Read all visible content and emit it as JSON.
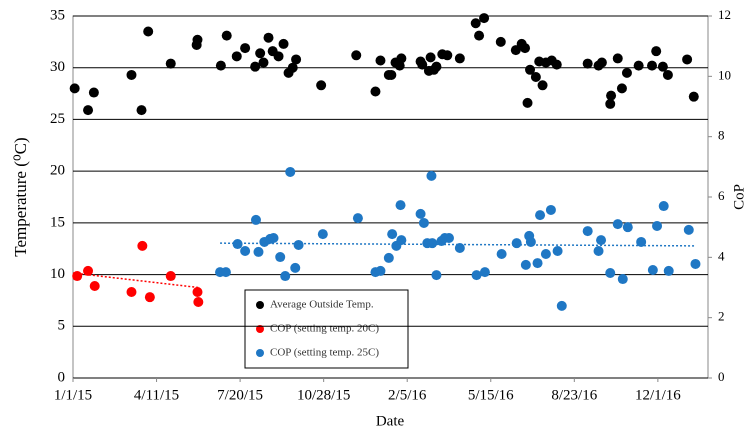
{
  "chart_data": {
    "type": "scatter",
    "xlabel": "Date",
    "ylabel": "Temperature (⁰C)",
    "y2label": "CoP",
    "xlim": [
      0,
      760
    ],
    "xticks": [
      {
        "value": 0,
        "label": "1/1/15"
      },
      {
        "value": 100,
        "label": "4/11/15"
      },
      {
        "value": 200,
        "label": "7/20/15"
      },
      {
        "value": 300,
        "label": "10/28/15"
      },
      {
        "value": 400,
        "label": "2/5/16"
      },
      {
        "value": 500,
        "label": "5/15/16"
      },
      {
        "value": 600,
        "label": "8/23/16"
      },
      {
        "value": 700,
        "label": "12/1/16"
      }
    ],
    "ylim": [
      0,
      35
    ],
    "yticks": [
      0,
      5,
      10,
      15,
      20,
      25,
      30,
      35
    ],
    "y2lim": [
      0,
      12
    ],
    "y2ticks": [
      0,
      2,
      4,
      6,
      8,
      10,
      12
    ],
    "grid": true,
    "series": [
      {
        "name": "Average Outside Temp.",
        "color": "#000000",
        "axis": "y",
        "x": [
          2,
          18,
          25,
          70,
          82,
          90,
          117,
          148,
          149,
          177,
          184,
          196,
          206,
          218,
          224,
          228,
          234,
          239,
          246,
          252,
          258,
          263,
          267,
          297,
          339,
          362,
          368,
          378,
          381,
          386,
          391,
          393,
          416,
          418,
          426,
          428,
          432,
          435,
          442,
          448,
          463,
          482,
          486,
          492,
          512,
          530,
          537,
          541,
          544,
          547,
          554,
          558,
          562,
          566,
          573,
          579,
          616,
          629,
          633,
          643,
          644,
          652,
          657,
          663,
          677,
          693,
          698,
          706,
          712,
          735,
          743
        ],
        "values": [
          28.0,
          25.9,
          27.6,
          29.3,
          25.9,
          33.5,
          30.4,
          32.2,
          32.7,
          30.2,
          33.1,
          31.1,
          31.9,
          30.1,
          31.4,
          30.5,
          32.9,
          31.6,
          31.1,
          32.3,
          29.5,
          30.0,
          30.8,
          28.3,
          31.2,
          27.7,
          30.7,
          29.3,
          29.3,
          30.5,
          30.2,
          30.9,
          30.6,
          30.3,
          29.7,
          31.0,
          29.8,
          30.1,
          31.3,
          31.2,
          30.9,
          34.3,
          33.1,
          34.8,
          32.5,
          31.7,
          32.3,
          31.9,
          26.6,
          29.8,
          29.1,
          30.6,
          28.3,
          30.5,
          30.7,
          30.3,
          30.4,
          30.2,
          30.5,
          26.5,
          27.3,
          30.9,
          28.0,
          29.5,
          30.2,
          30.2,
          31.6,
          30.1,
          29.3,
          30.8,
          27.2
        ]
      },
      {
        "name": "COP (setting temp. 20C)",
        "color": "#ff0000",
        "axis": "y2",
        "x": [
          5,
          18,
          26,
          70,
          83,
          92,
          117,
          149,
          150
        ],
        "values": [
          3.38,
          3.55,
          3.05,
          2.85,
          4.38,
          2.68,
          3.38,
          2.85,
          2.52
        ],
        "trend": {
          "x": [
            0,
            150
          ],
          "values": [
            3.48,
            3.0
          ]
        }
      },
      {
        "name": "COP (setting temp. 25C)",
        "color": "#1f77c4",
        "axis": "y2",
        "x": [
          176,
          183,
          197,
          206,
          219,
          222,
          229,
          236,
          240,
          248,
          254,
          260,
          266,
          270,
          299,
          341,
          362,
          368,
          378,
          382,
          387,
          392,
          393,
          416,
          420,
          424,
          429,
          430,
          435,
          441,
          445,
          450,
          463,
          483,
          493,
          513,
          531,
          542,
          546,
          548,
          556,
          559,
          566,
          572,
          580,
          585,
          616,
          629,
          632,
          643,
          652,
          658,
          664,
          680,
          694,
          699,
          707,
          713,
          737,
          745
        ],
        "values": [
          3.51,
          3.51,
          4.44,
          4.21,
          5.24,
          4.18,
          4.51,
          4.61,
          4.64,
          4.01,
          3.38,
          6.83,
          3.65,
          4.41,
          4.77,
          5.3,
          3.51,
          3.55,
          3.98,
          4.77,
          4.38,
          5.73,
          4.57,
          5.44,
          5.14,
          4.47,
          6.7,
          4.47,
          3.41,
          4.54,
          4.64,
          4.64,
          4.31,
          3.41,
          3.51,
          4.11,
          4.47,
          3.75,
          4.71,
          4.51,
          3.81,
          5.4,
          4.11,
          5.57,
          4.21,
          2.39,
          4.87,
          4.21,
          4.57,
          3.48,
          5.1,
          3.28,
          5.0,
          4.51,
          3.58,
          5.04,
          5.7,
          3.55,
          4.91,
          3.78
        ],
        "trend": {
          "x": [
            176,
            745
          ],
          "values": [
            4.47,
            4.38
          ]
        }
      }
    ]
  }
}
